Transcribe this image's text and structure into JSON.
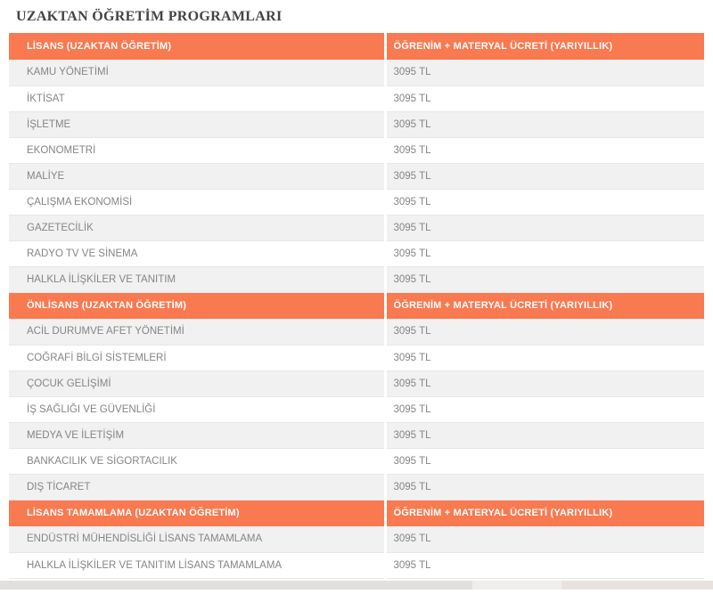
{
  "page_title": "UZAKTAN ÖĞRETİM PROGRAMLARI",
  "colors": {
    "header_bg": "#f97950",
    "header_text": "#ffffff",
    "row_alt_bg": "#f2f1f1",
    "row_text": "#858585",
    "title_text": "#444444",
    "border": "#e7e7e7"
  },
  "table": {
    "fee_column_header": "ÖĞRENİM + MATERYAL ÜCRETİ (YARIYILLIK)",
    "sections": [
      {
        "header": "LİSANS (UZAKTAN ÖĞRETİM)",
        "rows": [
          {
            "program": "KAMU YÖNETİMİ",
            "fee": "3095 TL"
          },
          {
            "program": "İKTİSAT",
            "fee": "3095 TL"
          },
          {
            "program": "İŞLETME",
            "fee": "3095 TL"
          },
          {
            "program": "EKONOMETRİ",
            "fee": "3095 TL"
          },
          {
            "program": "MALİYE",
            "fee": "3095 TL"
          },
          {
            "program": "ÇALIŞMA EKONOMİSİ",
            "fee": "3095 TL"
          },
          {
            "program": "GAZETECİLİK",
            "fee": "3095 TL"
          },
          {
            "program": "RADYO TV VE SİNEMA",
            "fee": "3095 TL"
          },
          {
            "program": "HALKLA İLİŞKİLER VE TANITIM",
            "fee": "3095 TL"
          }
        ]
      },
      {
        "header": "ÖNLİSANS (UZAKTAN ÖĞRETİM)",
        "rows": [
          {
            "program": "ACİL DURUMVE AFET YÖNETİMİ",
            "fee": "3095 TL"
          },
          {
            "program": "COĞRAFİ BİLGİ SİSTEMLERİ",
            "fee": "3095 TL"
          },
          {
            "program": "ÇOCUK GELİŞİMİ",
            "fee": "3095 TL"
          },
          {
            "program": "İŞ SAĞLIĞI VE GÜVENLİĞİ",
            "fee": "3095 TL"
          },
          {
            "program": "MEDYA VE İLETİŞİM",
            "fee": "3095 TL"
          },
          {
            "program": "BANKACILIK VE SİGORTACILIK",
            "fee": "3095 TL"
          },
          {
            "program": "DIŞ TİCARET",
            "fee": "3095 TL"
          }
        ]
      },
      {
        "header": "LİSANS TAMAMLAMA (UZAKTAN ÖĞRETİM)",
        "rows": [
          {
            "program": "ENDÜSTRİ MÜHENDİSLİĞİ LİSANS TAMAMLAMA",
            "fee": "3095 TL"
          },
          {
            "program": "HALKLA İLİŞKİLER VE TANITIM LİSANS TAMAMLAMA",
            "fee": "3095 TL"
          }
        ]
      }
    ]
  }
}
